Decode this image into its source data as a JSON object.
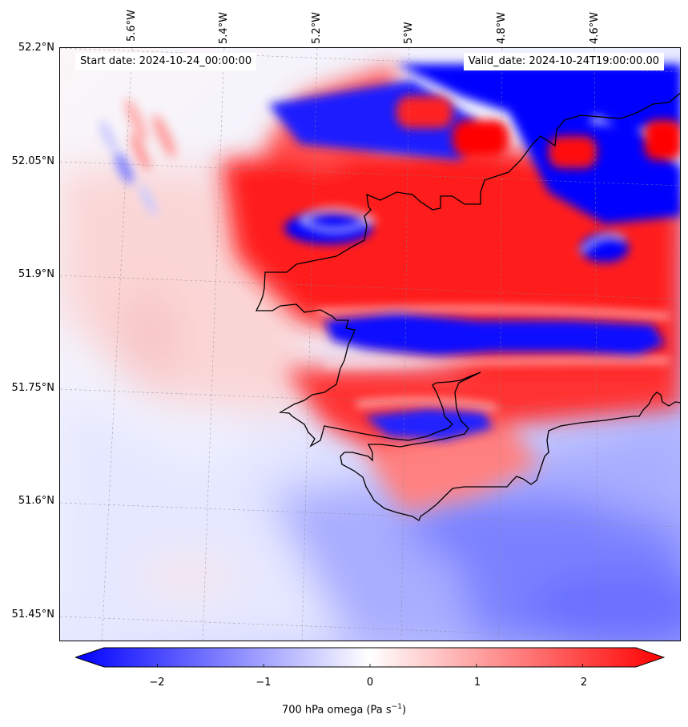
{
  "header": {
    "start_date": "Start date: 2024-10-24_00:00:00",
    "valid_date": "Valid_date: 2024-10-24T19:00:00.00"
  },
  "axes": {
    "lat_labels": [
      "52.2°N",
      "52.05°N",
      "51.9°N",
      "51.75°N",
      "51.6°N",
      "51.45°N"
    ],
    "lon_labels": [
      "5.6°W",
      "5.4°W",
      "5.2°W",
      "5°W",
      "4.8°W",
      "4.6°W"
    ]
  },
  "colorbar": {
    "title": "700 hPa omega (Pa s",
    "title_sup": "−1",
    "title_end": ")",
    "ticks": [
      "−2",
      "−1",
      "0",
      "1",
      "2"
    ],
    "range": [
      -2.75,
      2.75
    ],
    "negative_color": "#0000ff",
    "positive_color": "#ff0000",
    "neutral_color": "#ffffff"
  },
  "map": {
    "projection_grid": "dashed",
    "coastline_color": "#000000"
  }
}
